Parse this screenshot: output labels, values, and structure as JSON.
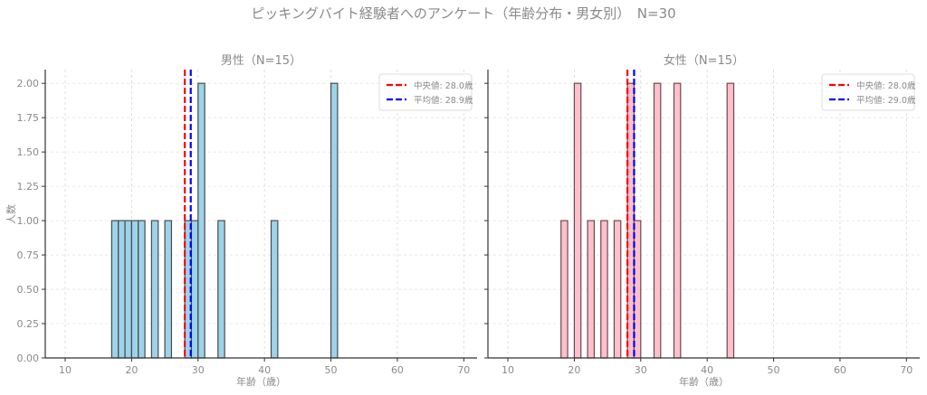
{
  "suptitle": "ピッキングバイト経験者へのアンケート（年齢分布・男女別）　N=30",
  "chart_data": [
    {
      "type": "bar",
      "title": "男性（N=15）",
      "xlabel": "年齢（歳）",
      "ylabel": "人数",
      "xlim": [
        7,
        72
      ],
      "ylim": [
        0,
        2.1
      ],
      "xticks": [
        10,
        20,
        30,
        40,
        50,
        60,
        70
      ],
      "yticks": [
        "0.00",
        "0.25",
        "0.50",
        "0.75",
        "1.00",
        "1.25",
        "1.50",
        "1.75",
        "2.00"
      ],
      "grid": true,
      "bar_color": "#9dd3ea",
      "edge_color": "#4a4a4a",
      "bins": [
        {
          "x0": 17,
          "x1": 18,
          "count": 1
        },
        {
          "x0": 18,
          "x1": 19,
          "count": 1
        },
        {
          "x0": 19,
          "x1": 20,
          "count": 1
        },
        {
          "x0": 20,
          "x1": 21,
          "count": 1
        },
        {
          "x0": 21,
          "x1": 22,
          "count": 1
        },
        {
          "x0": 23,
          "x1": 24,
          "count": 1
        },
        {
          "x0": 25,
          "x1": 26,
          "count": 1
        },
        {
          "x0": 28,
          "x1": 29,
          "count": 1
        },
        {
          "x0": 29,
          "x1": 30,
          "count": 1
        },
        {
          "x0": 30,
          "x1": 31,
          "count": 2
        },
        {
          "x0": 33,
          "x1": 34,
          "count": 1
        },
        {
          "x0": 41,
          "x1": 42,
          "count": 1
        },
        {
          "x0": 50,
          "x1": 51,
          "count": 2
        }
      ],
      "lines": [
        {
          "label": "中央値: 28.0歳",
          "x": 28.0,
          "color": "#ff0000"
        },
        {
          "label": "平均値: 28.9歳",
          "x": 28.9,
          "color": "#0000ff"
        }
      ],
      "legend_position": "upper right",
      "show_yticklabels": true
    },
    {
      "type": "bar",
      "title": "女性（N=15）",
      "xlabel": "年齢（歳）",
      "ylabel": "",
      "xlim": [
        7,
        72
      ],
      "ylim": [
        0,
        2.1
      ],
      "xticks": [
        10,
        20,
        30,
        40,
        50,
        60,
        70
      ],
      "yticks": [
        "0.00",
        "0.25",
        "0.50",
        "0.75",
        "1.00",
        "1.25",
        "1.50",
        "1.75",
        "2.00"
      ],
      "grid": true,
      "bar_color": "#ffc0cb",
      "edge_color": "#6a4a50",
      "bins": [
        {
          "x0": 18,
          "x1": 19,
          "count": 1
        },
        {
          "x0": 20,
          "x1": 21,
          "count": 2
        },
        {
          "x0": 22,
          "x1": 23,
          "count": 1
        },
        {
          "x0": 24,
          "x1": 25,
          "count": 1
        },
        {
          "x0": 26,
          "x1": 27,
          "count": 1
        },
        {
          "x0": 28,
          "x1": 29,
          "count": 2
        },
        {
          "x0": 29,
          "x1": 30,
          "count": 1
        },
        {
          "x0": 32,
          "x1": 33,
          "count": 2
        },
        {
          "x0": 35,
          "x1": 36,
          "count": 2
        },
        {
          "x0": 43,
          "x1": 44,
          "count": 2
        }
      ],
      "lines": [
        {
          "label": "中央値: 28.0歳",
          "x": 28.0,
          "color": "#ff0000"
        },
        {
          "label": "平均値: 29.0歳",
          "x": 29.0,
          "color": "#0000ff"
        }
      ],
      "legend_position": "upper right",
      "show_yticklabels": false
    }
  ]
}
